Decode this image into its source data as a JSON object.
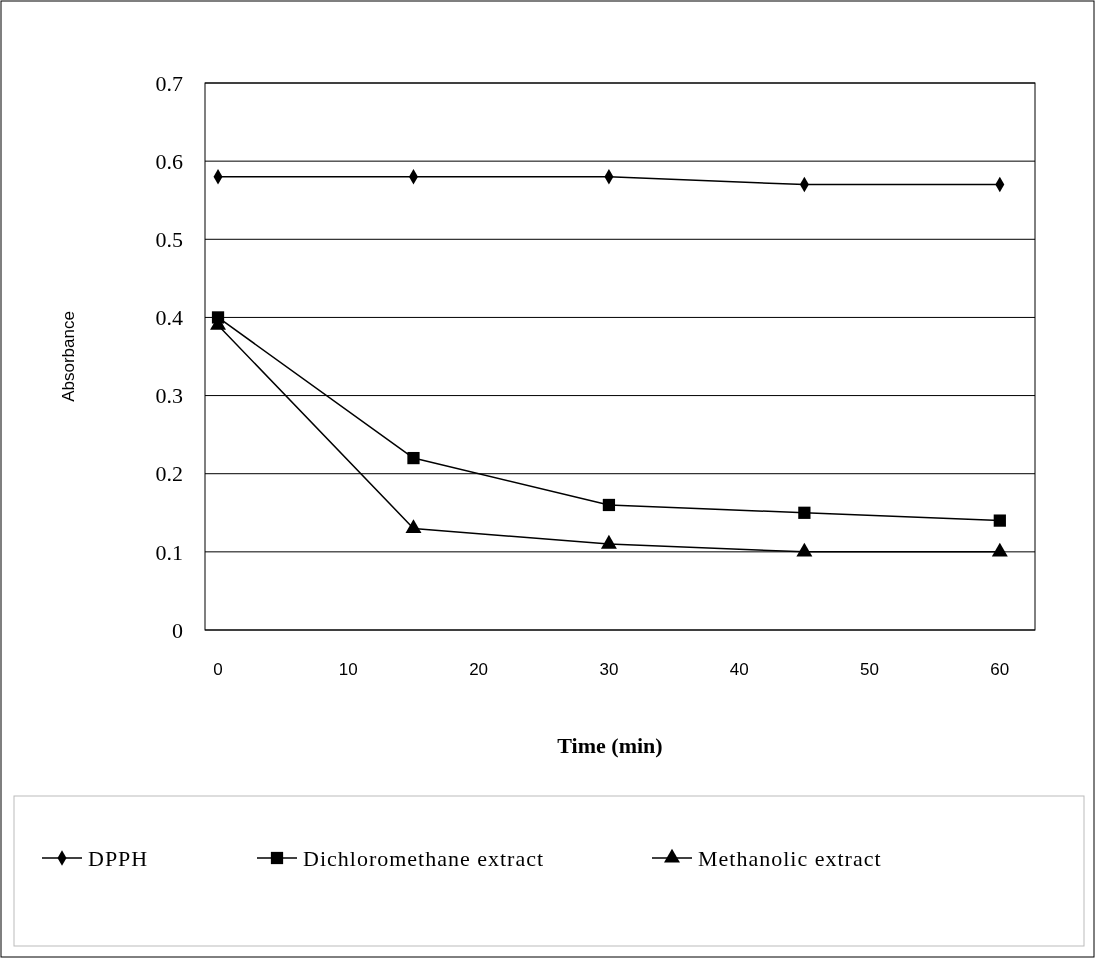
{
  "chart_data": {
    "type": "line",
    "xlabel": "Time (min)",
    "ylabel": "Absorbance",
    "x": [
      0,
      15,
      30,
      45,
      60
    ],
    "series": [
      {
        "name": "DPPH",
        "color": "#000000",
        "marker": "diamond",
        "values": [
          0.58,
          0.58,
          0.58,
          0.57,
          0.57
        ]
      },
      {
        "name": "Dichloromethane extract",
        "color": "#000000",
        "marker": "square",
        "values": [
          0.4,
          0.22,
          0.16,
          0.15,
          0.14
        ]
      },
      {
        "name": "Methanolic extract",
        "color": "#000000",
        "marker": "triangle",
        "values": [
          0.39,
          0.13,
          0.11,
          0.1,
          0.1
        ]
      }
    ],
    "xlim": [
      -1,
      62.7
    ],
    "xticks": [
      0,
      10,
      20,
      30,
      40,
      50,
      60
    ],
    "ylim": [
      0,
      0.7
    ],
    "yticks": [
      0,
      0.1,
      0.2,
      0.3,
      0.4,
      0.5,
      0.6,
      0.7
    ],
    "grid": "y",
    "legend": "bottom",
    "line_style": "solid"
  }
}
